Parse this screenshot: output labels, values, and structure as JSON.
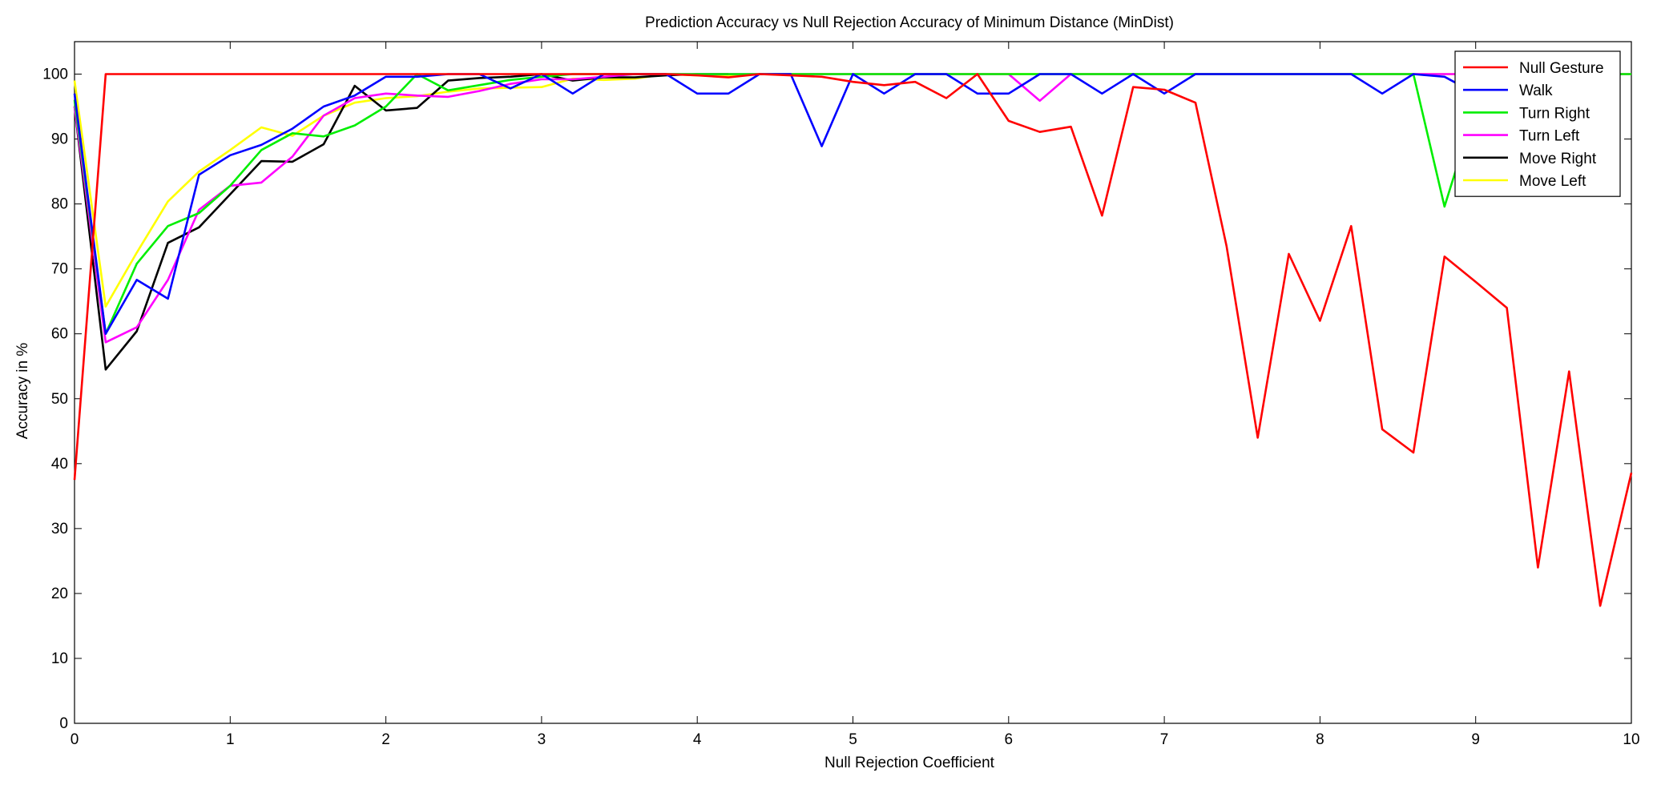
{
  "chart_data": {
    "type": "line",
    "title": "Prediction Accuracy vs Null Rejection Accuracy of Minimum Distance (MinDist)",
    "xlabel": "Null Rejection Coefficient",
    "ylabel": "Accuracy in %",
    "xlim": [
      0,
      10
    ],
    "ylim": [
      0,
      105
    ],
    "xticks": [
      "0",
      "1",
      "2",
      "3",
      "4",
      "5",
      "6",
      "7",
      "8",
      "9",
      "10"
    ],
    "yticks": [
      "0",
      "10",
      "20",
      "30",
      "40",
      "50",
      "60",
      "70",
      "80",
      "90",
      "100"
    ],
    "grid": false,
    "legend_position": "top-right",
    "x": [
      0,
      0.2,
      0.4,
      0.6,
      0.8,
      1.0,
      1.2,
      1.4,
      1.6,
      1.8,
      2.0,
      2.2,
      2.4,
      2.6,
      2.8,
      3.0,
      3.2,
      3.4,
      3.6,
      3.8,
      4.0,
      4.2,
      4.4,
      4.6,
      4.8,
      5.0,
      5.2,
      5.4,
      5.6,
      5.8,
      6.0,
      6.2,
      6.4,
      6.6,
      6.8,
      7.0,
      7.2,
      7.4,
      7.6,
      7.8,
      8.0,
      8.2,
      8.4,
      8.6,
      8.8,
      9.0,
      9.2,
      9.4,
      9.6,
      9.8,
      10.0
    ],
    "series": [
      {
        "name": "Null Gesture",
        "color": "#ff0000",
        "values": [
          37.5,
          100,
          100,
          100,
          100,
          100,
          100,
          100,
          100,
          100,
          100,
          100,
          100,
          100,
          100,
          100,
          100,
          100,
          100,
          100,
          99.8,
          99.5,
          100,
          99.8,
          99.6,
          98.8,
          98.3,
          98.8,
          96.3,
          100,
          92.8,
          91.1,
          91.9,
          78.2,
          98,
          97.6,
          95.6,
          73.5,
          44,
          72.3,
          62,
          76.6,
          45.3,
          41.7,
          71.9,
          68,
          64,
          24,
          54.2,
          18.1,
          38.6
        ]
      },
      {
        "name": "Walk",
        "color": "#0000ff",
        "values": [
          97,
          60,
          68.3,
          65.4,
          84.5,
          87.5,
          89.1,
          91.6,
          95,
          96.7,
          99.6,
          99.6,
          100,
          100,
          97.8,
          100,
          97,
          100,
          100,
          100,
          97,
          97,
          100,
          100,
          88.9,
          100,
          97,
          100,
          100,
          97,
          97,
          100,
          100,
          97,
          100,
          97,
          100,
          100,
          100,
          100,
          100,
          100,
          97,
          100,
          99.6,
          97,
          null,
          null,
          null,
          null,
          null
        ]
      },
      {
        "name": "Turn Right",
        "color": "#00ee00",
        "values": [
          96,
          60,
          70.8,
          76.6,
          78.6,
          82.8,
          88.3,
          90.9,
          90.4,
          92.1,
          95,
          100,
          97.5,
          98.3,
          99.1,
          99.6,
          100,
          100,
          100,
          100,
          100,
          100,
          100,
          100,
          100,
          100,
          100,
          100,
          100,
          100,
          100,
          100,
          100,
          100,
          100,
          100,
          100,
          100,
          100,
          100,
          100,
          100,
          100,
          100,
          79.6,
          95,
          100,
          100,
          100,
          100,
          100
        ]
      },
      {
        "name": "Turn Left",
        "color": "#ff00ff",
        "values": [
          95,
          58.7,
          61,
          68.3,
          79.1,
          82.8,
          83.3,
          87.3,
          93.6,
          96.3,
          97,
          96.7,
          96.5,
          97.4,
          98.5,
          99.2,
          99.2,
          99.6,
          100,
          100,
          100,
          100,
          100,
          100,
          100,
          100,
          100,
          100,
          100,
          100,
          100,
          95.9,
          100,
          100,
          100,
          100,
          100,
          100,
          100,
          100,
          100,
          100,
          100,
          100,
          100,
          100,
          100,
          100,
          100,
          100,
          100
        ]
      },
      {
        "name": "Move Right",
        "color": "#000000",
        "values": [
          95,
          54.5,
          60.4,
          74,
          76.4,
          81.5,
          86.6,
          86.5,
          89.2,
          98.2,
          94.4,
          94.8,
          99,
          99.4,
          99.6,
          100,
          99,
          99.5,
          99.5,
          99.8,
          100,
          100,
          null,
          null,
          null,
          null,
          null,
          null,
          null,
          null,
          null,
          null,
          null,
          null,
          null,
          null,
          null,
          null,
          null,
          null,
          null,
          null,
          null,
          null,
          null,
          null,
          null,
          null,
          null,
          null,
          null
        ]
      },
      {
        "name": "Move Left",
        "color": "#ffff00",
        "values": [
          99,
          64.2,
          72.5,
          80.4,
          85,
          88.3,
          91.8,
          90.5,
          93.6,
          95.6,
          96.3,
          96.6,
          97.3,
          97.8,
          97.9,
          98,
          99.3,
          99.1,
          99.3,
          100,
          99.8,
          99.8,
          100,
          100,
          100,
          100,
          100,
          100,
          100,
          100,
          100,
          100,
          100,
          100,
          100,
          100,
          100,
          100,
          100,
          100,
          100,
          100,
          100,
          100,
          100,
          100,
          100,
          100,
          100,
          100,
          100
        ]
      }
    ]
  }
}
